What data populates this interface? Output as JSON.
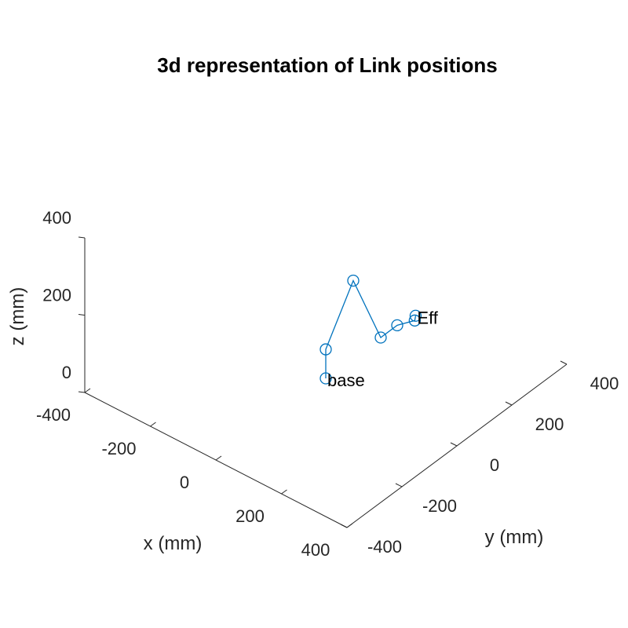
{
  "chart_data": {
    "type": "line3d",
    "title": "3d representation of Link positions",
    "xlabel": "x (mm)",
    "ylabel": "y (mm)",
    "zlabel": "z (mm)",
    "xlim": [
      -400,
      400
    ],
    "ylim": [
      -400,
      400
    ],
    "zlim": [
      0,
      400
    ],
    "x_ticks": [
      -400,
      -200,
      0,
      200,
      400
    ],
    "y_ticks": [
      -400,
      -200,
      0,
      200,
      400
    ],
    "z_ticks": [
      0,
      200,
      400
    ],
    "x_tick_labels": [
      "-400",
      "-200",
      "0",
      "200",
      "400"
    ],
    "y_tick_labels": [
      "-400",
      "-200",
      "0",
      "200",
      "400"
    ],
    "z_tick_labels": [
      "0",
      "200",
      "400"
    ],
    "grid": false,
    "series": [
      {
        "color": "#0072BD",
        "marker": "circle",
        "points": [
          {
            "x": 0,
            "y": 0,
            "z": 0
          },
          {
            "x": 0,
            "y": 0,
            "z": 75
          },
          {
            "x": 0,
            "y": 100,
            "z": 200
          },
          {
            "x": 0,
            "y": 200,
            "z": 0
          },
          {
            "x": 0,
            "y": 260,
            "z": 0
          },
          {
            "x": 20,
            "y": 300,
            "z": 0
          },
          {
            "x": 10,
            "y": 315,
            "z": 0
          }
        ]
      }
    ],
    "annotations": [
      {
        "text": "base",
        "point_index": 0
      },
      {
        "text": "Eff",
        "point_index": 6
      }
    ]
  }
}
